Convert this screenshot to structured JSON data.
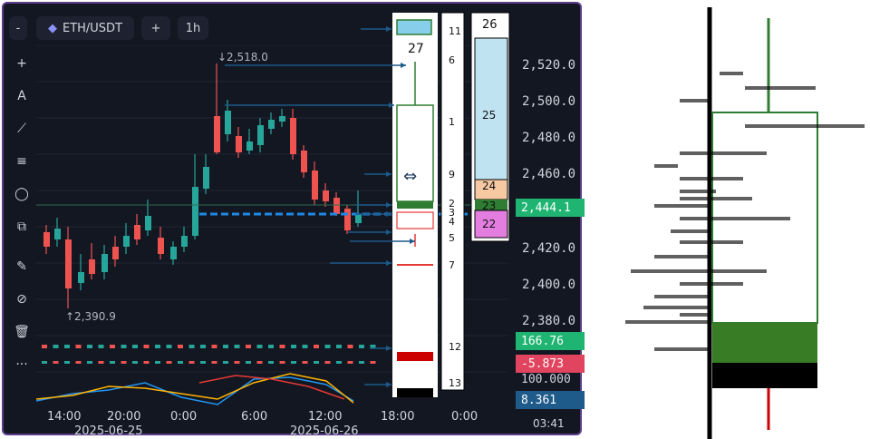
{
  "toolbar": {
    "symbol": "ETH/USDT",
    "add_label": "+",
    "interval": "1h",
    "collapse_label": "-"
  },
  "side_tools": [
    {
      "icon": "crosshair-icon",
      "glyph": "+"
    },
    {
      "icon": "text-icon",
      "glyph": "A"
    },
    {
      "icon": "trendline-icon",
      "glyph": "⟋"
    },
    {
      "icon": "fib-icon",
      "glyph": "≡"
    },
    {
      "icon": "circle-icon",
      "glyph": "◯"
    },
    {
      "icon": "measure-icon",
      "glyph": "⧉"
    },
    {
      "icon": "brush-icon",
      "glyph": "✎"
    },
    {
      "icon": "hide-icon",
      "glyph": "⊘"
    },
    {
      "icon": "trash-icon",
      "glyph": "🗑"
    },
    {
      "icon": "more-icon",
      "glyph": "···"
    }
  ],
  "annotations": {
    "high": "↓2,518.0",
    "low": "↑2,390.9"
  },
  "price_axis": {
    "labels": [
      "2,520.0",
      "2,500.0",
      "2,480.0",
      "2,460.0",
      "2,420.0",
      "2,400.0",
      "2,380.0"
    ],
    "current": "2,444.1",
    "ind1": "166.76",
    "ind2": "-5.873",
    "ind3": "100.000",
    "ind4": "8.361"
  },
  "time_axis": {
    "labels": [
      "14:00",
      "20:00",
      "0:00",
      "6:00",
      "12:00",
      "18:00",
      "0:00"
    ],
    "dates": [
      "2025-06-25",
      "2025-06-26"
    ],
    "clock": "03:41"
  },
  "numbers": {
    "left_col": [
      "11",
      "6",
      "1",
      "9",
      "2",
      "3",
      "4",
      "5",
      "7",
      "12",
      "13"
    ],
    "top_left": "27",
    "right_top": "26",
    "right_col": [
      "25",
      "24",
      "23",
      "22"
    ]
  },
  "colors": {
    "up": "#26a69a",
    "down": "#ef5350",
    "current": "#1fb471",
    "accent_blue": "#2962ff",
    "frame": "#5b3d8a"
  }
}
